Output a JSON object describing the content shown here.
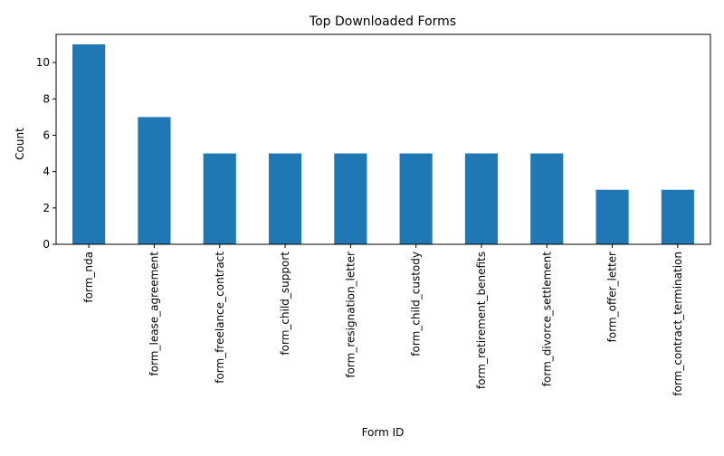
{
  "chart_data": {
    "type": "bar",
    "title": "Top Downloaded Forms",
    "xlabel": "Form ID",
    "ylabel": "Count",
    "categories": [
      "form_nda",
      "form_lease_agreement",
      "form_freelance_contract",
      "form_child_support",
      "form_resignation_letter",
      "form_child_custody",
      "form_retirement_benefits",
      "form_divorce_settlement",
      "form_offer_letter",
      "form_contract_termination"
    ],
    "values": [
      11,
      7,
      5,
      5,
      5,
      5,
      5,
      5,
      3,
      3
    ],
    "ylim": [
      0,
      11.55
    ],
    "yticks": [
      0,
      2,
      4,
      6,
      8,
      10
    ],
    "bar_color": "#1f77b4",
    "grid": false,
    "legend": false
  }
}
